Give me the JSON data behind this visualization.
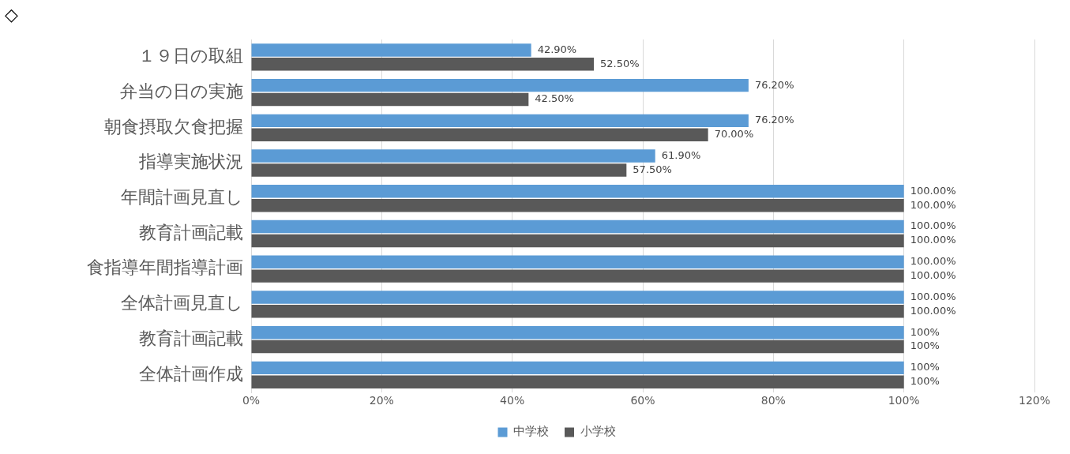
{
  "chart_data": {
    "type": "bar",
    "orientation": "horizontal",
    "categories": [
      "１９日の取組",
      "弁当の日の実施",
      "朝食摂取欠食把握",
      "指導実施状況",
      "年間計画見直し",
      "教育計画記載",
      "食指導年間指導計画",
      "全体計画見直し",
      "教育計画記載",
      "全体計画作成"
    ],
    "series": [
      {
        "name": "中学校",
        "color": "#5b9bd5",
        "values": [
          42.9,
          76.2,
          76.2,
          61.9,
          100,
          100,
          100,
          100,
          100,
          100
        ],
        "value_labels": [
          "42.90%",
          "76.20%",
          "76.20%",
          "61.90%",
          "100.00%",
          "100.00%",
          "100.00%",
          "100.00%",
          "100%",
          "100%"
        ]
      },
      {
        "name": "小学校",
        "color": "#595959",
        "values": [
          52.5,
          42.5,
          70.0,
          57.5,
          100,
          100,
          100,
          100,
          100,
          100
        ],
        "value_labels": [
          "52.50%",
          "42.50%",
          "70.00%",
          "57.50%",
          "100.00%",
          "100.00%",
          "100.00%",
          "100.00%",
          "100%",
          "100%"
        ]
      }
    ],
    "xlim": [
      0,
      120
    ],
    "xticks": [
      {
        "value": 0,
        "label": "0%"
      },
      {
        "value": 20,
        "label": "20%"
      },
      {
        "value": 40,
        "label": "40%"
      },
      {
        "value": 60,
        "label": "60%"
      },
      {
        "value": 80,
        "label": "80%"
      },
      {
        "value": 100,
        "label": "100%"
      },
      {
        "value": 120,
        "label": "120%"
      }
    ],
    "grid": "x",
    "legend": "bottom",
    "annotations": [
      "◇"
    ]
  }
}
